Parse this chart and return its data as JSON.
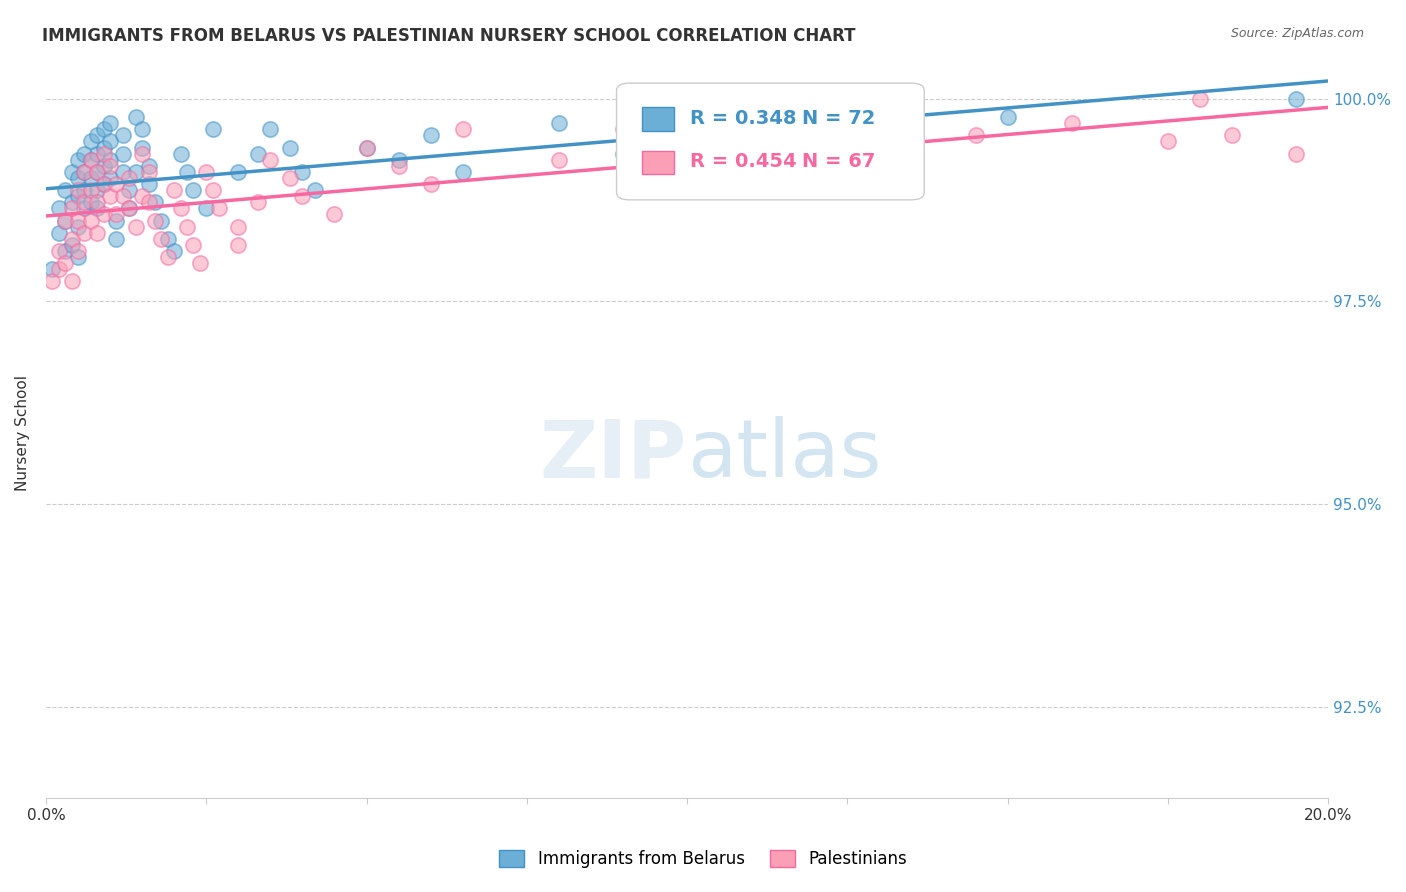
{
  "title": "IMMIGRANTS FROM BELARUS VS PALESTINIAN NURSERY SCHOOL CORRELATION CHART",
  "source": "Source: ZipAtlas.com",
  "ylabel": "Nursery School",
  "legend_label1": "Immigrants from Belarus",
  "legend_label2": "Palestinians",
  "r1": 0.348,
  "n1": 72,
  "r2": 0.454,
  "n2": 67,
  "color_blue": "#6baed6",
  "color_pink": "#fa9fb5",
  "color_blue_line": "#4292c6",
  "color_pink_line": "#f768a1",
  "color_blue_text": "#4292c6",
  "color_pink_text": "#f768a1",
  "color_right_axis": "#4292c6",
  "ytick_labels": [
    "92.5%",
    "95.0%",
    "97.5%",
    "100.0%"
  ],
  "ytick_values": [
    0.0,
    0.333,
    0.667,
    1.0
  ],
  "scatter_blue": {
    "x": [
      0.001,
      0.002,
      0.002,
      0.003,
      0.003,
      0.003,
      0.004,
      0.004,
      0.004,
      0.005,
      0.005,
      0.005,
      0.005,
      0.005,
      0.006,
      0.006,
      0.006,
      0.006,
      0.007,
      0.007,
      0.007,
      0.007,
      0.008,
      0.008,
      0.008,
      0.008,
      0.008,
      0.009,
      0.009,
      0.009,
      0.009,
      0.01,
      0.01,
      0.01,
      0.01,
      0.011,
      0.011,
      0.012,
      0.012,
      0.012,
      0.013,
      0.013,
      0.014,
      0.014,
      0.015,
      0.015,
      0.016,
      0.016,
      0.017,
      0.018,
      0.019,
      0.02,
      0.021,
      0.022,
      0.023,
      0.025,
      0.026,
      0.03,
      0.033,
      0.035,
      0.038,
      0.04,
      0.042,
      0.05,
      0.055,
      0.06,
      0.065,
      0.08,
      0.09,
      0.105,
      0.15,
      0.195
    ],
    "y": [
      0.72,
      0.78,
      0.82,
      0.85,
      0.8,
      0.75,
      0.88,
      0.83,
      0.76,
      0.9,
      0.87,
      0.84,
      0.79,
      0.74,
      0.91,
      0.88,
      0.85,
      0.82,
      0.93,
      0.9,
      0.87,
      0.83,
      0.94,
      0.91,
      0.88,
      0.85,
      0.82,
      0.95,
      0.92,
      0.89,
      0.86,
      0.96,
      0.93,
      0.9,
      0.87,
      0.8,
      0.77,
      0.94,
      0.91,
      0.88,
      0.85,
      0.82,
      0.97,
      0.88,
      0.95,
      0.92,
      0.89,
      0.86,
      0.83,
      0.8,
      0.77,
      0.75,
      0.91,
      0.88,
      0.85,
      0.82,
      0.95,
      0.88,
      0.91,
      0.95,
      0.92,
      0.88,
      0.85,
      0.92,
      0.9,
      0.94,
      0.88,
      0.96,
      0.91,
      0.95,
      0.97,
      1.0
    ]
  },
  "scatter_pink": {
    "x": [
      0.001,
      0.002,
      0.002,
      0.003,
      0.003,
      0.004,
      0.004,
      0.004,
      0.005,
      0.005,
      0.005,
      0.006,
      0.006,
      0.006,
      0.007,
      0.007,
      0.007,
      0.008,
      0.008,
      0.008,
      0.009,
      0.009,
      0.009,
      0.01,
      0.01,
      0.011,
      0.011,
      0.012,
      0.013,
      0.013,
      0.014,
      0.015,
      0.015,
      0.016,
      0.016,
      0.017,
      0.018,
      0.019,
      0.02,
      0.021,
      0.022,
      0.023,
      0.024,
      0.025,
      0.026,
      0.027,
      0.03,
      0.03,
      0.033,
      0.035,
      0.038,
      0.04,
      0.045,
      0.05,
      0.055,
      0.06,
      0.065,
      0.08,
      0.09,
      0.105,
      0.12,
      0.145,
      0.16,
      0.175,
      0.195,
      0.18,
      0.185
    ],
    "y": [
      0.7,
      0.75,
      0.72,
      0.8,
      0.73,
      0.82,
      0.77,
      0.7,
      0.85,
      0.8,
      0.75,
      0.88,
      0.83,
      0.78,
      0.9,
      0.85,
      0.8,
      0.88,
      0.83,
      0.78,
      0.91,
      0.86,
      0.81,
      0.89,
      0.84,
      0.86,
      0.81,
      0.84,
      0.87,
      0.82,
      0.79,
      0.91,
      0.84,
      0.88,
      0.83,
      0.8,
      0.77,
      0.74,
      0.85,
      0.82,
      0.79,
      0.76,
      0.73,
      0.88,
      0.85,
      0.82,
      0.79,
      0.76,
      0.83,
      0.9,
      0.87,
      0.84,
      0.81,
      0.92,
      0.89,
      0.86,
      0.95,
      0.9,
      0.95,
      0.91,
      0.93,
      0.94,
      0.96,
      0.93,
      0.91,
      1.0,
      0.94
    ]
  },
  "xmin": 0.0,
  "xmax": 0.2,
  "ymin": -0.15,
  "ymax": 1.05
}
